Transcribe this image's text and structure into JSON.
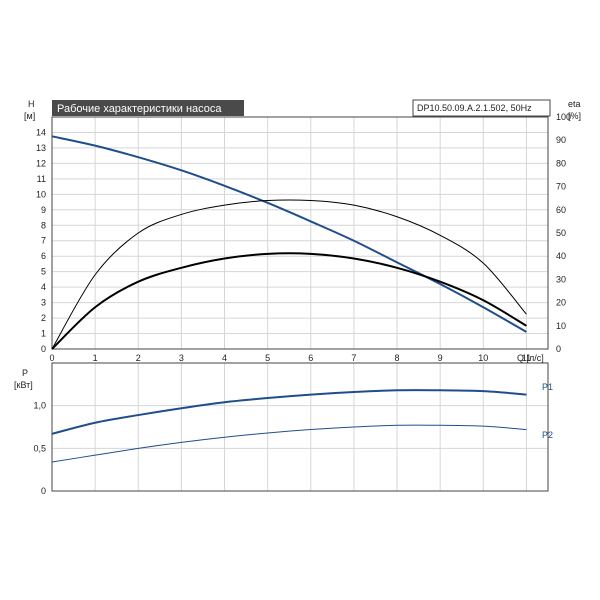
{
  "chart_data": [
    {
      "type": "line",
      "title": "Рабочие характеристики насоса",
      "model_label": "DP10.50.09.A.2.1.502, 50Hz",
      "ylabel": "H",
      "ylabel_unit": "[м]",
      "y2label": "eta",
      "y2label_unit": "[%]",
      "xlabel": "Q [л/с]",
      "xlim": [
        0,
        11.5
      ],
      "ylim": [
        0,
        15
      ],
      "y2lim": [
        0,
        100
      ],
      "grid": true,
      "x_ticks": [
        "0",
        "1",
        "2",
        "3",
        "4",
        "5",
        "6",
        "7",
        "8",
        "9",
        "10",
        "11"
      ],
      "y_ticks": [
        "0",
        "1",
        "2",
        "3",
        "4",
        "5",
        "6",
        "7",
        "8",
        "9",
        "10",
        "11",
        "12",
        "13",
        "14"
      ],
      "y2_ticks": [
        "0",
        "10",
        "20",
        "30",
        "40",
        "50",
        "60",
        "70",
        "80",
        "90",
        "100"
      ],
      "series": [
        {
          "axis": "left",
          "color": "#1f4e8c",
          "width": 2,
          "x": [
            0,
            1,
            2,
            3,
            4,
            5,
            6,
            7,
            8,
            9,
            10,
            11
          ],
          "y": [
            13.75,
            13.15,
            12.4,
            11.55,
            10.55,
            9.45,
            8.25,
            7.0,
            5.6,
            4.2,
            2.7,
            1.1
          ]
        },
        {
          "axis": "right",
          "color": "#000000",
          "width": 1,
          "x": [
            0,
            1,
            2,
            3,
            4,
            5,
            6,
            7,
            8,
            9,
            10,
            11
          ],
          "y": [
            0,
            32,
            50,
            58,
            62,
            64,
            64,
            62,
            57,
            49,
            37,
            15
          ]
        },
        {
          "axis": "right",
          "color": "#000000",
          "width": 2,
          "x": [
            0,
            1,
            2,
            3,
            4,
            5,
            6,
            7,
            8,
            9,
            10,
            11
          ],
          "y": [
            0,
            18,
            29,
            35,
            39,
            41,
            41,
            39,
            35,
            29,
            21,
            10
          ]
        }
      ]
    },
    {
      "type": "line",
      "ylabel": "P",
      "ylabel_unit": "[кВт]",
      "xlim": [
        0,
        11.5
      ],
      "ylim": [
        0,
        1.5
      ],
      "grid": true,
      "y_ticks": [
        {
          "v": 0,
          "label": "0"
        },
        {
          "v": 0.5,
          "label": "0,5"
        },
        {
          "v": 1.0,
          "label": "1,0"
        }
      ],
      "series": [
        {
          "name": "P1",
          "color": "#1f4e8c",
          "width": 2,
          "x": [
            0,
            1,
            2,
            3,
            4,
            5,
            6,
            7,
            8,
            9,
            10,
            11
          ],
          "y": [
            0.67,
            0.8,
            0.89,
            0.97,
            1.04,
            1.09,
            1.13,
            1.16,
            1.18,
            1.18,
            1.17,
            1.13
          ]
        },
        {
          "name": "P2",
          "color": "#1f4e8c",
          "width": 1,
          "x": [
            0,
            1,
            2,
            3,
            4,
            5,
            6,
            7,
            8,
            9,
            10,
            11
          ],
          "y": [
            0.34,
            0.42,
            0.5,
            0.57,
            0.63,
            0.68,
            0.72,
            0.75,
            0.77,
            0.77,
            0.76,
            0.72
          ]
        }
      ]
    }
  ]
}
